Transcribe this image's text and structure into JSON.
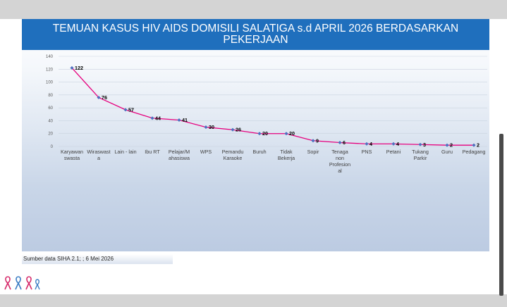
{
  "title": "TEMUAN KASUS HIV AIDS DOMISILI  SALATIGA  s.d APRIL 2026 BERDASARKAN PEKERJAAN",
  "source": "Sumber data SIHA 2.1; ; 6 Mei 2026",
  "colors": {
    "title_band": "#1f6fbd",
    "line": "#e6007e",
    "marker": "#4f6fbf"
  },
  "chart_data": {
    "type": "line",
    "title": "TEMUAN KASUS HIV AIDS DOMISILI  SALATIGA  s.d APRIL 2026 BERDASARKAN PEKERJAAN",
    "categories": [
      "Karyawan swasta",
      "Wiraswasta",
      "Lain - lain",
      "Ibu RT",
      "Pelajar/Mahasiswa",
      "WPS",
      "Pemandu Karaoke",
      "Buruh",
      "Tidak Bekerja",
      "Sopir",
      "Tenaga non Profesional",
      "PNS",
      "Petani",
      "Tukang Parkir",
      "Guru",
      "Pedagang"
    ],
    "category_lines": [
      [
        "Karyawan",
        "swasta"
      ],
      [
        "Wiraswast",
        "a"
      ],
      [
        "Lain - lain"
      ],
      [
        "Ibu RT"
      ],
      [
        "Pelajar/M",
        "ahasiswa"
      ],
      [
        "WPS"
      ],
      [
        "Pemandu",
        "Karaoke"
      ],
      [
        "Buruh"
      ],
      [
        "Tidak",
        "Bekerja"
      ],
      [
        "Sopir"
      ],
      [
        "Tenaga",
        "non",
        "Profesion",
        "al"
      ],
      [
        "PNS"
      ],
      [
        "Petani"
      ],
      [
        "Tukang",
        "Parkir"
      ],
      [
        "Guru"
      ],
      [
        "Pedagang"
      ]
    ],
    "series": [
      {
        "values": [
          122,
          76,
          57,
          44,
          41,
          30,
          26,
          20,
          20,
          9,
          6,
          4,
          4,
          3,
          2,
          2
        ]
      }
    ],
    "y_ticks": [
      0,
      20,
      40,
      60,
      80,
      100,
      120,
      140
    ],
    "ylim": [
      0,
      140
    ],
    "xlabel": "",
    "ylabel": "",
    "grid": true,
    "data_labels": true
  }
}
